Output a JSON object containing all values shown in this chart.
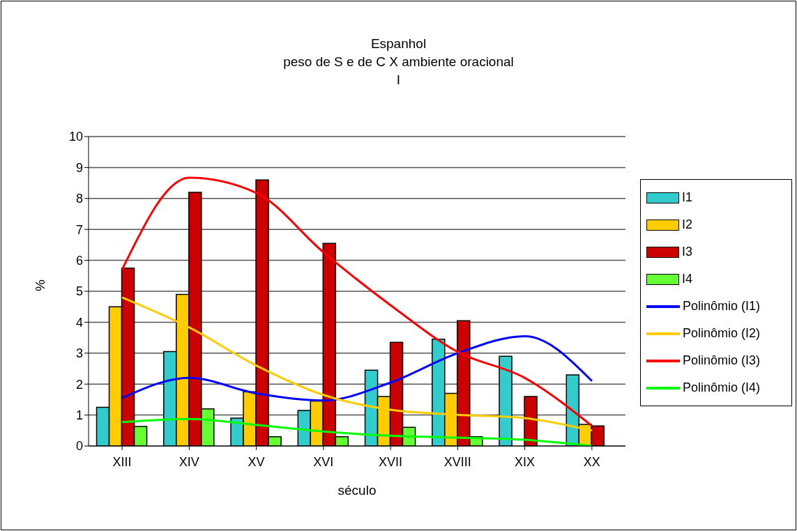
{
  "chart_data": {
    "type": "bar",
    "title": "Espanhol",
    "subtitle": "peso de S e de C X ambiente oracional\nI",
    "xlabel": "século",
    "ylabel": "%",
    "categories": [
      "XIII",
      "XIV",
      "XV",
      "XVI",
      "XVII",
      "XVIII",
      "XIX",
      "XX"
    ],
    "series": [
      {
        "name": "I1",
        "color": "#33cccc",
        "values": [
          1.25,
          3.05,
          0.9,
          1.15,
          2.45,
          3.45,
          2.9,
          2.3
        ]
      },
      {
        "name": "I2",
        "color": "#ffcc00",
        "values": [
          4.5,
          4.9,
          1.75,
          1.45,
          1.6,
          1.7,
          null,
          0.7
        ]
      },
      {
        "name": "I3",
        "color": "#cc0000",
        "values": [
          5.75,
          8.2,
          8.6,
          6.55,
          3.35,
          4.05,
          1.6,
          0.65
        ]
      },
      {
        "name": "I4",
        "color": "#66ff33",
        "values": [
          0.63,
          1.2,
          0.3,
          0.3,
          0.6,
          0.3,
          null,
          null
        ]
      },
      {
        "name": "Polinômio (I1)",
        "type": "line",
        "color": "#0000ff",
        "values": [
          1.55,
          2.2,
          1.7,
          1.47,
          2.05,
          3.0,
          3.55,
          2.1
        ]
      },
      {
        "name": "Polinômio (I2)",
        "type": "line",
        "color": "#ffcc00",
        "values": [
          4.8,
          3.83,
          2.6,
          1.65,
          1.17,
          1.01,
          0.9,
          0.5
        ]
      },
      {
        "name": "Polinômio (I3)",
        "type": "line",
        "color": "#ff0000",
        "values": [
          5.7,
          8.67,
          8.18,
          6.26,
          4.55,
          3.04,
          2.2,
          0.65
        ]
      },
      {
        "name": "Polinômio (I4)",
        "type": "line",
        "color": "#00ff00",
        "values": [
          0.77,
          0.87,
          0.68,
          0.47,
          0.33,
          0.27,
          0.2,
          0.0
        ]
      }
    ],
    "ylim": [
      0,
      10
    ],
    "yticks": [
      0,
      1,
      2,
      3,
      4,
      5,
      6,
      7,
      8,
      9,
      10
    ],
    "grid": "y",
    "legend": "right",
    "marker": "none"
  }
}
